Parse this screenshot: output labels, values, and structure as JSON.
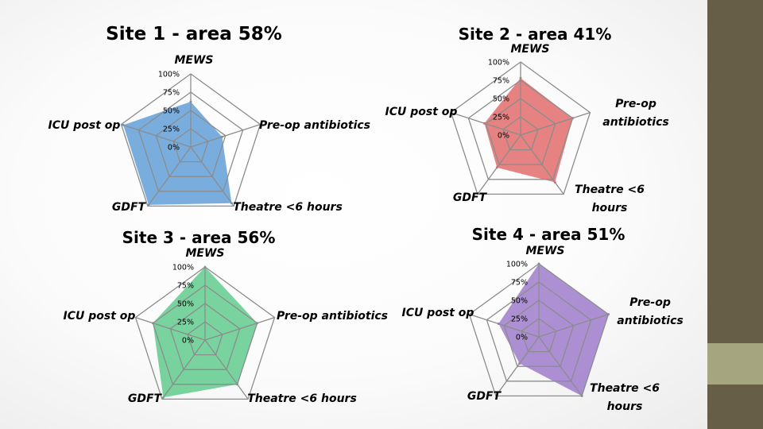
{
  "slide": {
    "background": "#ffffff",
    "sidebar_color": "#675e47",
    "sidebar_accent_color": "#a5a57f"
  },
  "chart_data": [
    {
      "type": "radar",
      "title": "Site 1 - area 58%",
      "axes": [
        "MEWS",
        "Pre-op antibiotics",
        "Theatre <6 hours",
        "GDFT",
        "ICU post op"
      ],
      "ticks": [
        "0%",
        "25%",
        "50%",
        "75%",
        "100%"
      ],
      "range": [
        0,
        100
      ],
      "values": [
        62,
        45,
        95,
        98,
        97
      ],
      "color": "#5b9bd5"
    },
    {
      "type": "radar",
      "title": "Site 2 - area 41%",
      "axes": [
        "MEWS",
        "Pre-op antibiotics",
        "Theatre <6 hours",
        "GDFT",
        "ICU post op"
      ],
      "ticks": [
        "0%",
        "25%",
        "50%",
        "75%",
        "100%"
      ],
      "range": [
        0,
        100
      ],
      "values": [
        78,
        75,
        80,
        55,
        52
      ],
      "color": "#e06666"
    },
    {
      "type": "radar",
      "title": "Site 3 - area 56%",
      "axes": [
        "MEWS",
        "Pre-op antibiotics",
        "Theatre <6 hours",
        "GDFT",
        "ICU post op"
      ],
      "ticks": [
        "0%",
        "25%",
        "50%",
        "75%",
        "100%"
      ],
      "range": [
        0,
        100
      ],
      "values": [
        100,
        75,
        75,
        97,
        75
      ],
      "color": "#5cc98a"
    },
    {
      "type": "radar",
      "title": "Site 4 - area 51%",
      "axes": [
        "MEWS",
        "Pre-op antibiotics",
        "Theatre <6 hours",
        "GDFT",
        "ICU post op"
      ],
      "ticks": [
        "0%",
        "25%",
        "50%",
        "75%",
        "100%"
      ],
      "range": [
        0,
        100
      ],
      "values": [
        100,
        100,
        100,
        45,
        58
      ],
      "color": "#9b77c9"
    }
  ]
}
